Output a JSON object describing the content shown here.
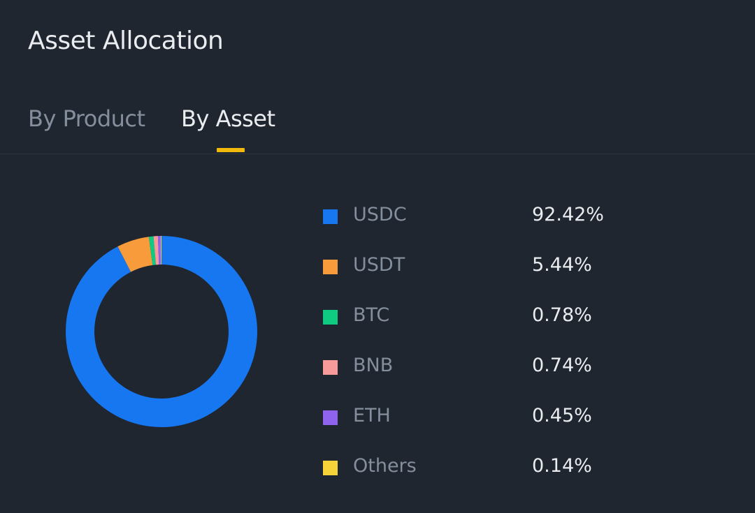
{
  "header": {
    "title": "Asset Allocation"
  },
  "tabs": [
    {
      "label": "By Product",
      "active": false
    },
    {
      "label": "By Asset",
      "active": true
    }
  ],
  "accent": "#f0b90b",
  "chart_data": {
    "type": "pie",
    "variant": "donut",
    "categories": [
      "USDC",
      "USDT",
      "BTC",
      "BNB",
      "ETH",
      "Others"
    ],
    "values": [
      92.42,
      5.44,
      0.78,
      0.74,
      0.45,
      0.14
    ],
    "labels": [
      "92.42%",
      "5.44%",
      "0.78%",
      "0.74%",
      "0.45%",
      "0.14%"
    ],
    "colors": [
      "#1677f0",
      "#f89c3b",
      "#0ecb81",
      "#f89a9a",
      "#8f63ee",
      "#f6d439"
    ],
    "legend": "right"
  }
}
